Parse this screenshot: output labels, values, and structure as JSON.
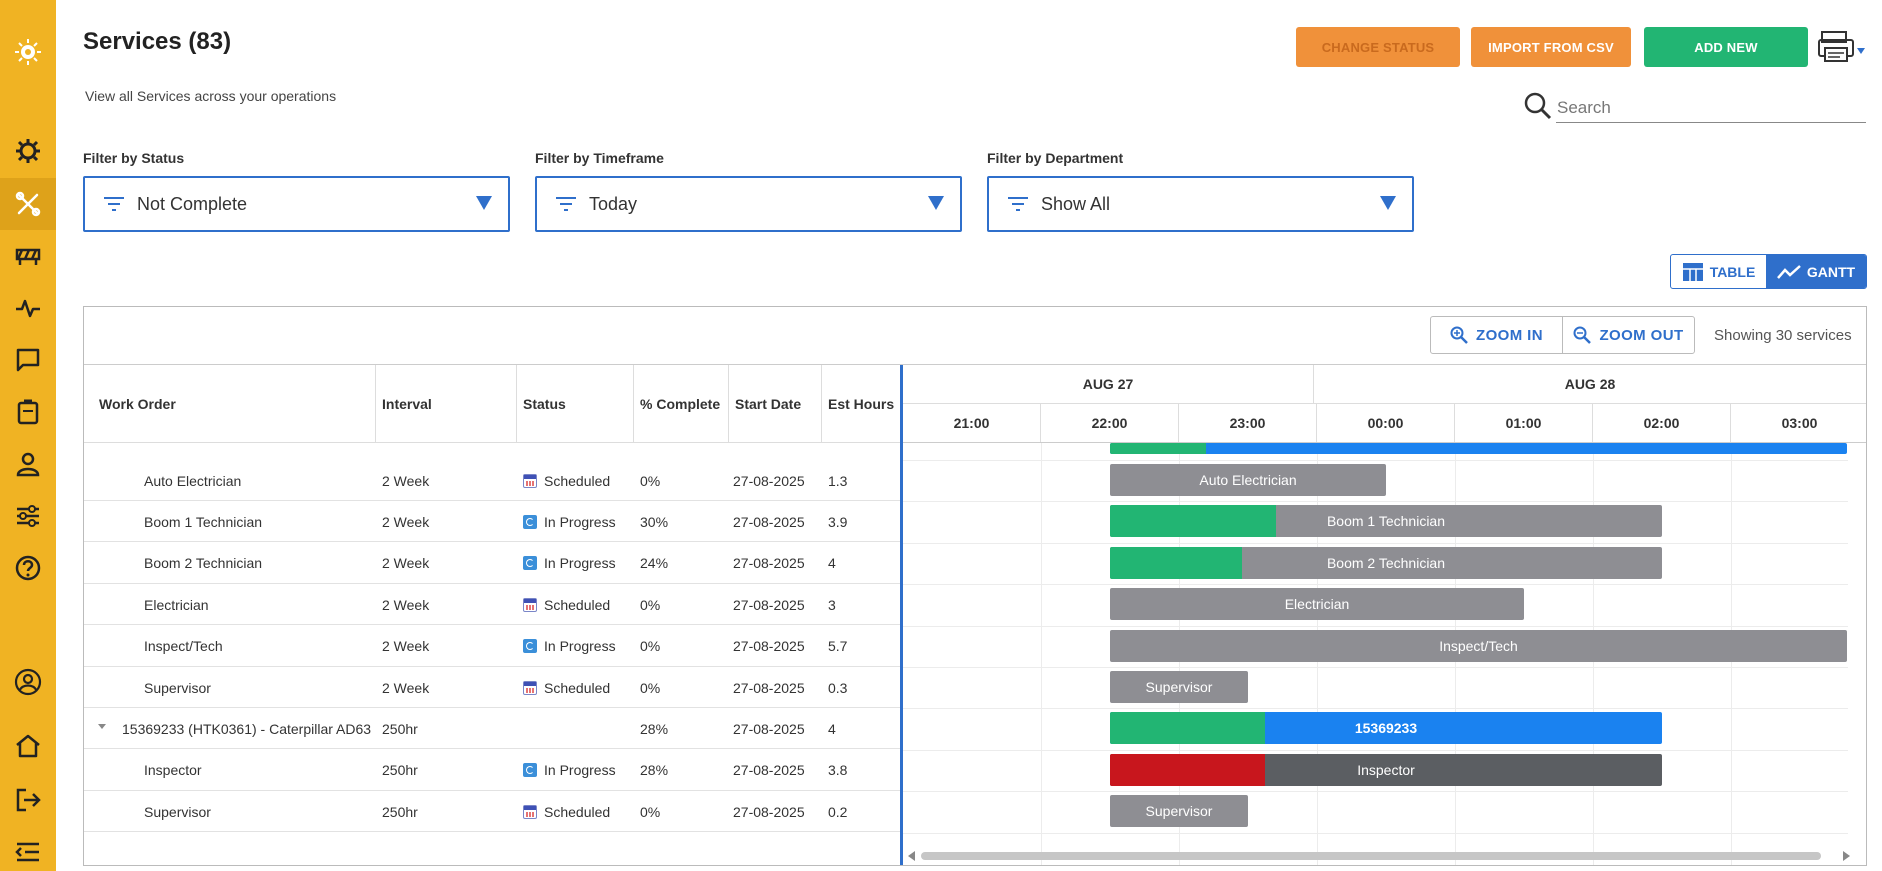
{
  "page": {
    "title": "Services (83)",
    "subtitle": "View all Services across your operations"
  },
  "actions": {
    "change_status": "CHANGE STATUS",
    "import_csv": "IMPORT FROM CSV",
    "add_new": "ADD NEW"
  },
  "search": {
    "placeholder": "Search"
  },
  "filters": {
    "status": {
      "label": "Filter by Status",
      "value": "Not Complete"
    },
    "timeframe": {
      "label": "Filter by Timeframe",
      "value": "Today"
    },
    "department": {
      "label": "Filter by Department",
      "value": "Show All"
    }
  },
  "view_toggle": {
    "table": "TABLE",
    "gantt": "GANTT",
    "selected": "GANTT"
  },
  "toolbar": {
    "zoom_in": "ZOOM IN",
    "zoom_out": "ZOOM OUT",
    "showing": "Showing 30 services"
  },
  "table": {
    "headers": [
      "Work Order",
      "Interval",
      "Status",
      "% Complete",
      "Start Date",
      "Est Hours"
    ],
    "rows": [
      {
        "work_order": "Auto Electrician",
        "interval": "2 Week",
        "status": "Scheduled",
        "complete": "0%",
        "start": "27-08-2025",
        "hours": "1.3"
      },
      {
        "work_order": "Boom 1 Technician",
        "interval": "2 Week",
        "status": "In Progress",
        "complete": "30%",
        "start": "27-08-2025",
        "hours": "3.9"
      },
      {
        "work_order": "Boom 2 Technician",
        "interval": "2 Week",
        "status": "In Progress",
        "complete": "24%",
        "start": "27-08-2025",
        "hours": "4"
      },
      {
        "work_order": "Electrician",
        "interval": "2 Week",
        "status": "Scheduled",
        "complete": "0%",
        "start": "27-08-2025",
        "hours": "3"
      },
      {
        "work_order": "Inspect/Tech",
        "interval": "2 Week",
        "status": "In Progress",
        "complete": "0%",
        "start": "27-08-2025",
        "hours": "5.7"
      },
      {
        "work_order": "Supervisor",
        "interval": "2 Week",
        "status": "Scheduled",
        "complete": "0%",
        "start": "27-08-2025",
        "hours": "0.3"
      },
      {
        "work_order": "15369233 (HTK0361) - Caterpillar AD63",
        "interval": "250hr",
        "status": "",
        "complete": "28%",
        "start": "27-08-2025",
        "hours": "4",
        "parent": true
      },
      {
        "work_order": "Inspector",
        "interval": "250hr",
        "status": "In Progress",
        "complete": "28%",
        "start": "27-08-2025",
        "hours": "3.8"
      },
      {
        "work_order": "Supervisor",
        "interval": "250hr",
        "status": "Scheduled",
        "complete": "0%",
        "start": "27-08-2025",
        "hours": "0.2"
      }
    ]
  },
  "gantt": {
    "days": [
      "AUG 27",
      "AUG 28"
    ],
    "hours": [
      "21:00",
      "22:00",
      "23:00",
      "00:00",
      "01:00",
      "02:00",
      "03:00"
    ],
    "bars": [
      {
        "label": "",
        "start_hour": 22.0,
        "end_hour": 28.5,
        "progress": 0.13,
        "color": "#1a82f0",
        "progress_color": "#22b573"
      },
      {
        "label": "Auto Electrician",
        "start_hour": 22.0,
        "end_hour": 24.0,
        "progress": 0,
        "color": "#8e8e93",
        "progress_color": "#22b573"
      },
      {
        "label": "Boom 1 Technician",
        "start_hour": 22.0,
        "end_hour": 26.0,
        "progress": 0.3,
        "color": "#8e8e93",
        "progress_color": "#22b573"
      },
      {
        "label": "Boom 2 Technician",
        "start_hour": 22.0,
        "end_hour": 26.0,
        "progress": 0.24,
        "color": "#8e8e93",
        "progress_color": "#22b573"
      },
      {
        "label": "Electrician",
        "start_hour": 22.0,
        "end_hour": 25.0,
        "progress": 0,
        "color": "#8e8e93",
        "progress_color": "#22b573"
      },
      {
        "label": "Inspect/Tech",
        "start_hour": 22.0,
        "end_hour": 28.5,
        "progress": 0,
        "color": "#8e8e93",
        "progress_color": "#22b573"
      },
      {
        "label": "Supervisor",
        "start_hour": 22.0,
        "end_hour": 23.0,
        "progress": 0,
        "color": "#8e8e93",
        "progress_color": "#22b573"
      },
      {
        "label": "15369233",
        "start_hour": 22.0,
        "end_hour": 26.0,
        "progress": 0.28,
        "color": "#1a82f0",
        "progress_color": "#22b573",
        "bold": true
      },
      {
        "label": "Inspector",
        "start_hour": 22.0,
        "end_hour": 26.0,
        "progress": 0.28,
        "color": "#5b5e62",
        "progress_color": "#c8161d"
      },
      {
        "label": "Supervisor",
        "start_hour": 22.0,
        "end_hour": 23.0,
        "progress": 0,
        "color": "#8e8e93",
        "progress_color": "#22b573"
      }
    ]
  },
  "colors": {
    "sidebar": "#f0b323",
    "accent": "#2f6fcb",
    "add_button": "#22b573",
    "import_button": "#f0913a"
  }
}
